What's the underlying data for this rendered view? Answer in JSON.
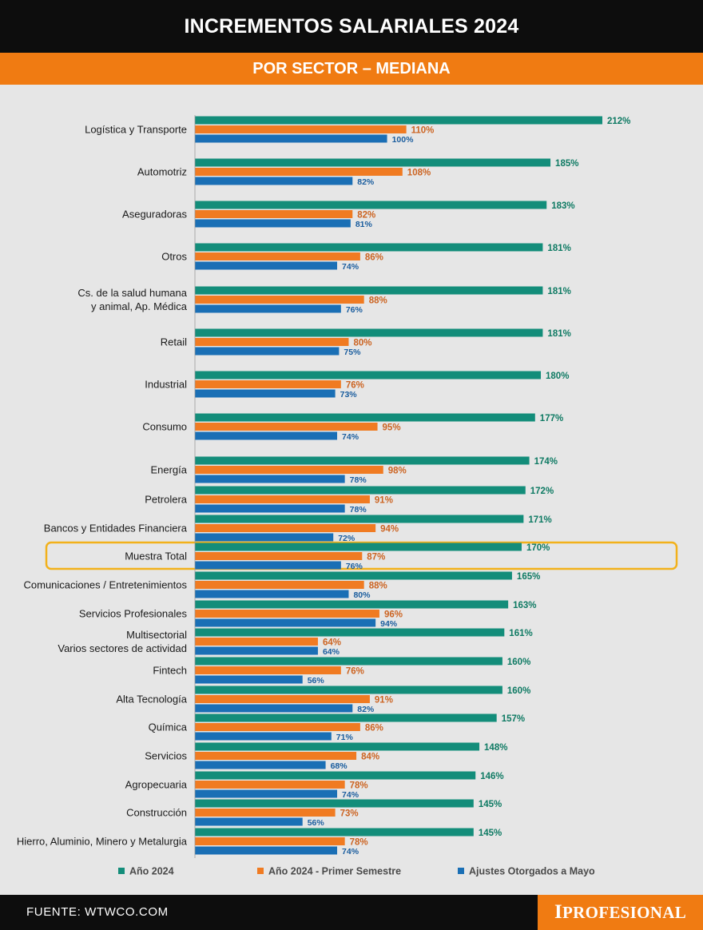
{
  "header": {
    "title": "INCREMENTOS SALARIALES 2024",
    "subtitle": "POR SECTOR – MEDIANA"
  },
  "footer": {
    "source": "FUENTE: WTWCO.COM",
    "brand": "IPROFESIONAL"
  },
  "colors": {
    "series_1": "#138d7a",
    "series_2": "#f07b22",
    "series_3": "#1a6fb5",
    "label_1": "#0e7a63",
    "label_2": "#cc6422",
    "label_3": "#1a5d9e",
    "highlight_border": "#f2b11b"
  },
  "chart_data": {
    "type": "bar",
    "orientation": "horizontal",
    "categories": [
      "Logística y Transporte",
      "Automotriz",
      "Aseguradoras",
      "Otros",
      "Cs. de la salud humana\ny animal, Ap. Médica",
      "Retail",
      "Industrial",
      "Consumo",
      "Energía",
      "Petrolera",
      "Bancos y Entidades Financiera",
      "Muestra Total",
      "Comunicaciones / Entretenimientos",
      "Servicios Profesionales",
      "Multisectorial\nVarios sectores de actividad",
      "Fintech",
      "Alta Tecnología",
      "Química",
      "Servicios",
      "Agropecuaria",
      "Construcción",
      "Hierro, Aluminio, Minero y Metalurgia"
    ],
    "highlighted_category": "Muestra Total",
    "series": [
      {
        "name": "Año 2024",
        "values": [
          212,
          185,
          183,
          181,
          181,
          181,
          180,
          177,
          174,
          172,
          171,
          170,
          165,
          163,
          161,
          160,
          160,
          157,
          148,
          146,
          145,
          145
        ]
      },
      {
        "name": "Año 2024 - Primer Semestre",
        "values": [
          110,
          108,
          82,
          86,
          88,
          80,
          76,
          95,
          98,
          91,
          94,
          87,
          88,
          96,
          64,
          76,
          91,
          86,
          84,
          78,
          73,
          78
        ]
      },
      {
        "name": "Ajustes Otorgados a Mayo",
        "values": [
          100,
          82,
          81,
          74,
          76,
          75,
          73,
          74,
          78,
          78,
          72,
          76,
          80,
          94,
          64,
          56,
          82,
          71,
          68,
          74,
          56,
          74
        ]
      }
    ],
    "value_suffix": "%",
    "legend_position": "bottom",
    "grid": false
  }
}
